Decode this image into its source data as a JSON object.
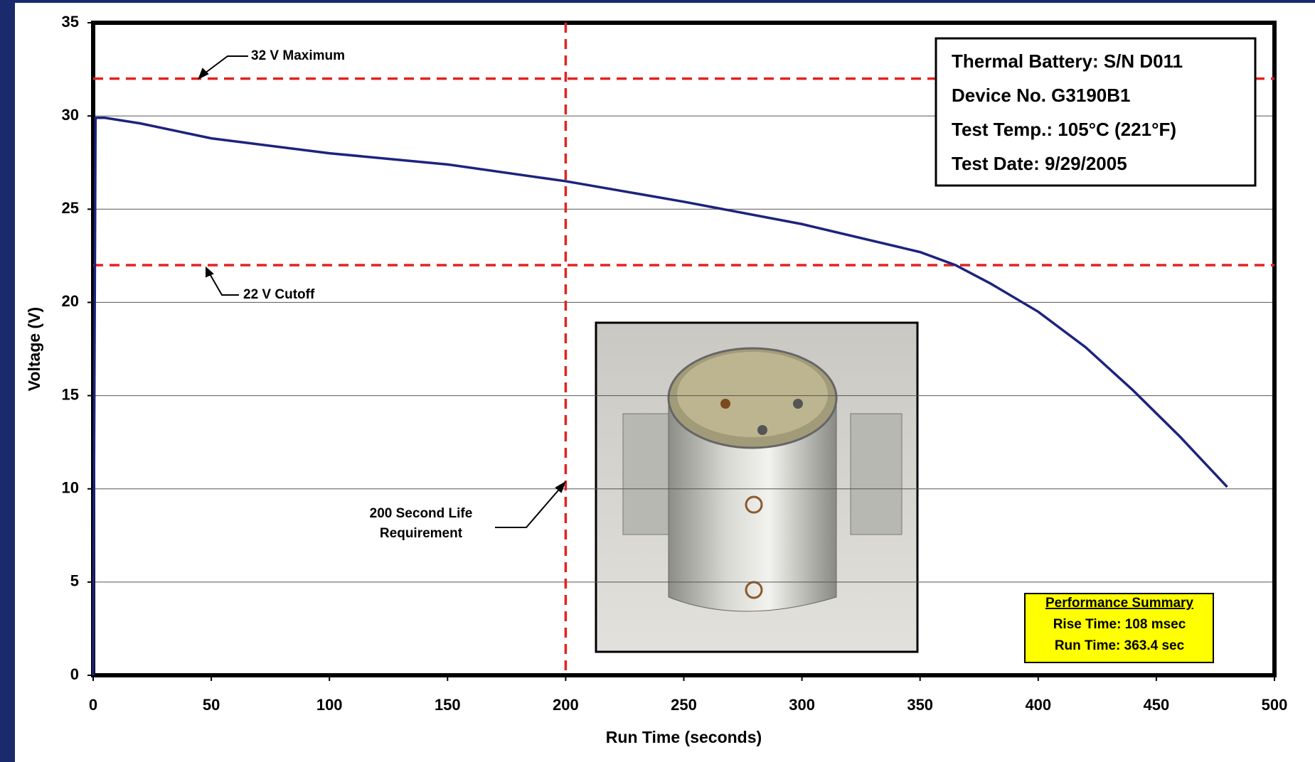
{
  "chart_data": {
    "type": "line",
    "x_label": "Run Time (seconds)",
    "y_label": "Voltage (V)",
    "xlim": [
      0,
      500
    ],
    "xticks": [
      0,
      50,
      100,
      150,
      200,
      250,
      300,
      350,
      400,
      450,
      500
    ],
    "ylim": [
      0,
      35
    ],
    "yticks": [
      0,
      5,
      10,
      15,
      20,
      25,
      30,
      35
    ],
    "grid": true,
    "series": [
      {
        "color": "#1c237e",
        "x": [
          0,
          1,
          5,
          20,
          50,
          100,
          150,
          200,
          250,
          300,
          350,
          365,
          380,
          400,
          420,
          440,
          460,
          480
        ],
        "values": [
          0,
          29.9,
          29.9,
          29.6,
          28.8,
          28.0,
          27.4,
          26.5,
          25.4,
          24.2,
          22.7,
          22.0,
          21.0,
          19.5,
          17.6,
          15.3,
          12.8,
          10.1
        ]
      }
    ],
    "reference_lines": [
      {
        "axis": "y",
        "value": 32,
        "label": [
          "32 V Maximum"
        ]
      },
      {
        "axis": "y",
        "value": 22,
        "label": [
          "22 V Cutoff"
        ]
      },
      {
        "axis": "x",
        "value": 200,
        "label": [
          "200 Second Life",
          "Requirement"
        ]
      }
    ],
    "reference_color": "#e32222",
    "info_box": [
      "Thermal Battery: S/N D011",
      "Device No. G3190B1",
      "Test Temp.: 105°C (221°F)",
      "Test Date: 9/29/2005"
    ],
    "summary_box": {
      "title": "Performance Summary",
      "lines": [
        "Rise Time: 108 msec",
        "Run Time: 363.4 sec"
      ]
    }
  }
}
